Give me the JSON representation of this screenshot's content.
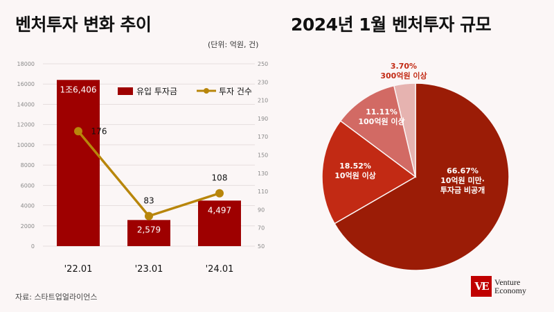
{
  "left_title": "벤처투자 변화 추이",
  "right_title": "2024년 1월 벤처투자 규모",
  "unit_note": "(단위: 억원, 건)",
  "source": "자료: 스타트업얼라이언스",
  "logo": {
    "mark": "VE",
    "line1": "Venture",
    "line2": "Economy"
  },
  "chart_data": [
    {
      "type": "bar",
      "categories": [
        "'22.01",
        "'23.01",
        "'24.01"
      ],
      "series": [
        {
          "name": "유입 투자금",
          "axis": "left",
          "values": [
            16406,
            2579,
            4497
          ],
          "labels": [
            "1조6,406",
            "2,579",
            "4,497"
          ],
          "color": "#9e0000"
        },
        {
          "name": "투자 건수",
          "type": "line",
          "axis": "right",
          "values": [
            176,
            83,
            108
          ],
          "labels": [
            "176",
            "83",
            "108"
          ],
          "color": "#b8860b"
        }
      ],
      "ylim_left": [
        0,
        18000
      ],
      "yticks_left": [
        0,
        2000,
        4000,
        6000,
        8000,
        10000,
        12000,
        14000,
        16000,
        18000
      ],
      "ylim_right": [
        50,
        250
      ],
      "yticks_right": [
        50,
        70,
        90,
        110,
        130,
        150,
        170,
        190,
        210,
        230,
        250
      ],
      "grid": true,
      "legend": "top-right"
    },
    {
      "type": "pie",
      "slices": [
        {
          "label": "10억원 미만·\n투자금 비공개",
          "percent_label": "66.67%",
          "value": 66.67,
          "color": "#9b1c06"
        },
        {
          "label": "10억원 이상",
          "percent_label": "18.52%",
          "value": 18.52,
          "color": "#c22a14"
        },
        {
          "label": "100억원 이상",
          "percent_label": "11.11%",
          "value": 11.11,
          "color": "#d26a64"
        },
        {
          "label": "300억원 이상",
          "percent_label": "3.70%",
          "value": 3.7,
          "color": "#e6b3b0"
        }
      ]
    }
  ]
}
